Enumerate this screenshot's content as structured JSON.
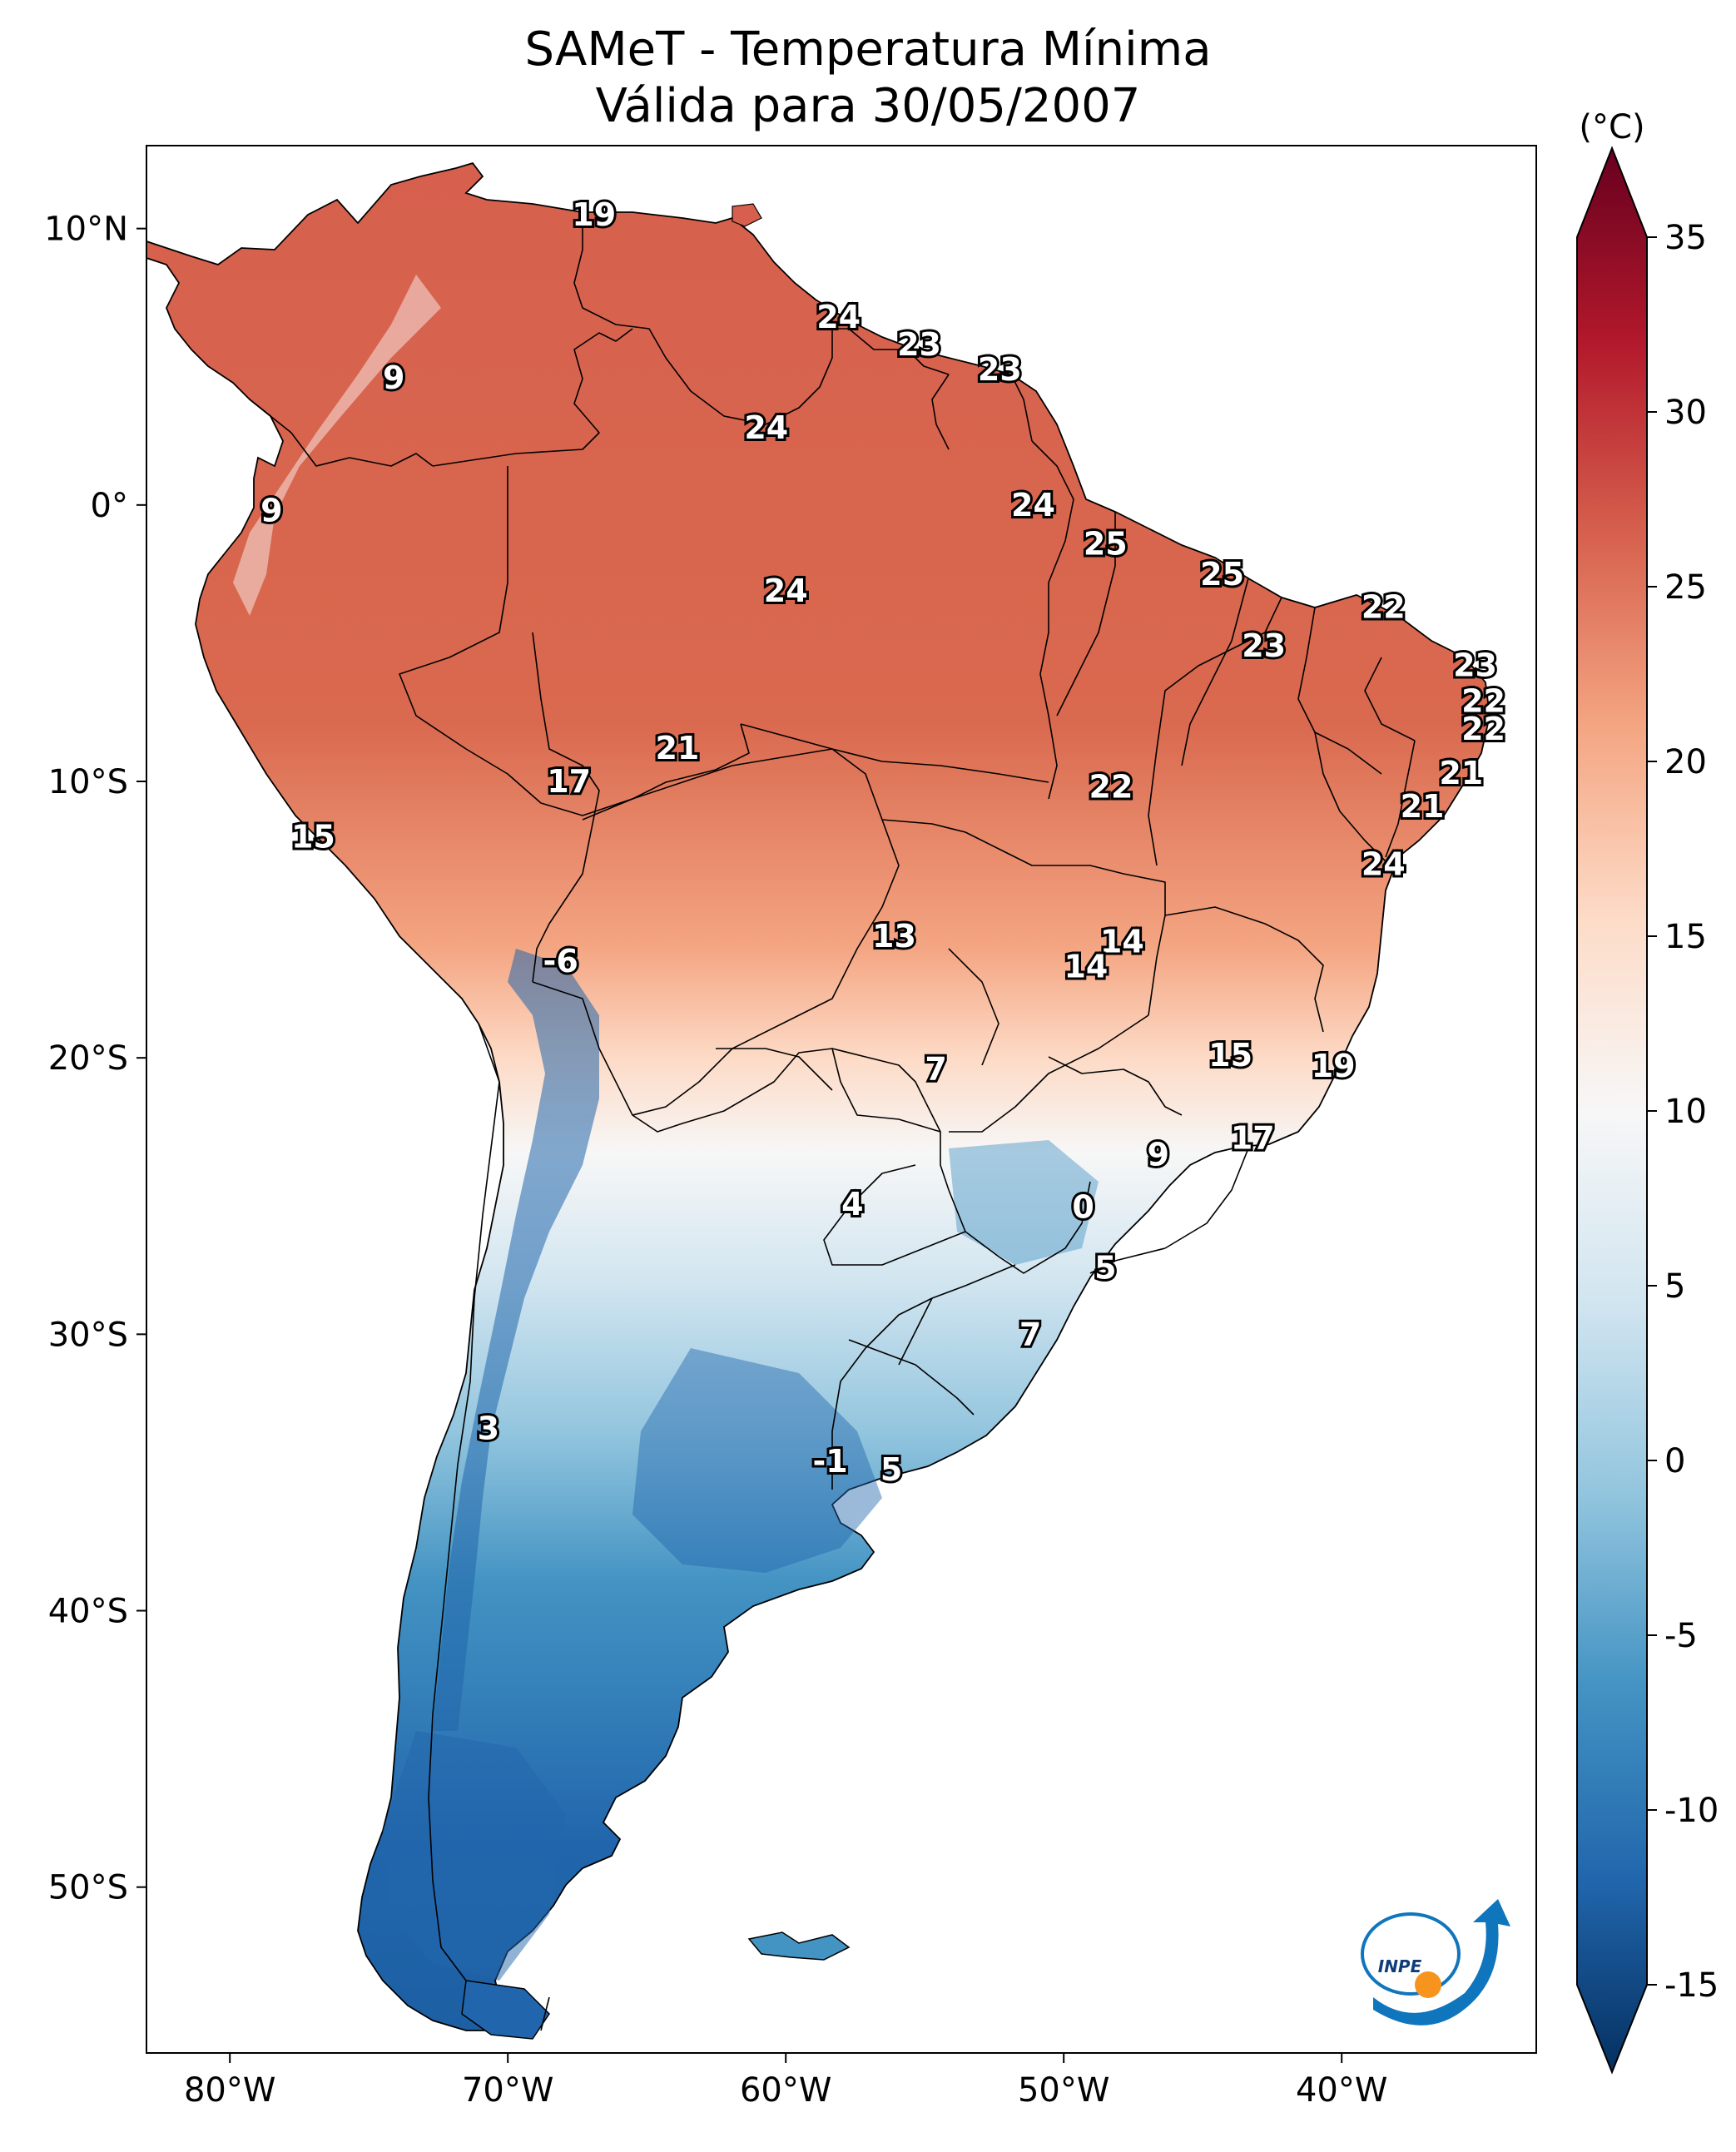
{
  "title": {
    "line1": "SAMeT - Temperatura Mínima",
    "line2": "Válida para 30/05/2007"
  },
  "map": {
    "lon_range": [
      -83,
      -33
    ],
    "lat_range": [
      -56,
      13
    ],
    "xticks": [
      {
        "lon": -80,
        "label": "80°W"
      },
      {
        "lon": -70,
        "label": "70°W"
      },
      {
        "lon": -60,
        "label": "60°W"
      },
      {
        "lon": -50,
        "label": "50°W"
      },
      {
        "lon": -40,
        "label": "40°W"
      }
    ],
    "yticks": [
      {
        "lat": 10,
        "label": "10°N"
      },
      {
        "lat": 0,
        "label": "0°"
      },
      {
        "lat": -10,
        "label": "10°S"
      },
      {
        "lat": -20,
        "label": "20°S"
      },
      {
        "lat": -30,
        "label": "30°S"
      },
      {
        "lat": -40,
        "label": "40°S"
      },
      {
        "lat": -50,
        "label": "50°S"
      }
    ]
  },
  "colorbar": {
    "unit": "(°C)",
    "range": [
      -15,
      35
    ],
    "ticks": [
      "35",
      "30",
      "25",
      "20",
      "15",
      "10",
      "5",
      "0",
      "-5",
      "-10",
      "-15"
    ],
    "colors": [
      "#053061",
      "#2166ac",
      "#4393c3",
      "#92c5de",
      "#d1e5f0",
      "#f7f7f7",
      "#fddbc7",
      "#f4a582",
      "#d6604d",
      "#b2182b",
      "#67001f"
    ]
  },
  "station_values": [
    {
      "lon": -66.9,
      "lat": 10.5,
      "label": "19"
    },
    {
      "lon": -74.1,
      "lat": 4.6,
      "label": "9"
    },
    {
      "lon": -78.5,
      "lat": -0.2,
      "label": "9"
    },
    {
      "lon": -58.1,
      "lat": 6.8,
      "label": "24"
    },
    {
      "lon": -55.2,
      "lat": 5.8,
      "label": "23"
    },
    {
      "lon": -52.3,
      "lat": 4.9,
      "label": "23"
    },
    {
      "lon": -60.7,
      "lat": 2.8,
      "label": "24"
    },
    {
      "lon": -51.1,
      "lat": 0.0,
      "label": "24"
    },
    {
      "lon": -48.5,
      "lat": -1.4,
      "label": "25"
    },
    {
      "lon": -44.3,
      "lat": -2.5,
      "label": "25"
    },
    {
      "lon": -60.0,
      "lat": -3.1,
      "label": "24"
    },
    {
      "lon": -38.5,
      "lat": -3.7,
      "label": "22"
    },
    {
      "lon": -42.8,
      "lat": -5.1,
      "label": "23"
    },
    {
      "lon": -35.2,
      "lat": -5.8,
      "label": "23"
    },
    {
      "lon": -34.9,
      "lat": -7.1,
      "label": "22"
    },
    {
      "lon": -34.9,
      "lat": -8.1,
      "label": "22"
    },
    {
      "lon": -63.9,
      "lat": -8.8,
      "label": "21"
    },
    {
      "lon": -67.8,
      "lat": -10.0,
      "label": "17"
    },
    {
      "lon": -48.3,
      "lat": -10.2,
      "label": "22"
    },
    {
      "lon": -35.7,
      "lat": -9.7,
      "label": "21"
    },
    {
      "lon": -37.1,
      "lat": -10.9,
      "label": "21"
    },
    {
      "lon": -38.5,
      "lat": -13.0,
      "label": "24"
    },
    {
      "lon": -77.0,
      "lat": -12.0,
      "label": "15"
    },
    {
      "lon": -56.1,
      "lat": -15.6,
      "label": "13"
    },
    {
      "lon": -47.9,
      "lat": -15.8,
      "label": "14"
    },
    {
      "lon": -49.2,
      "lat": -16.7,
      "label": "14"
    },
    {
      "lon": -68.1,
      "lat": -16.5,
      "label": "-6"
    },
    {
      "lon": -44.0,
      "lat": -19.9,
      "label": "15"
    },
    {
      "lon": -40.3,
      "lat": -20.3,
      "label": "19"
    },
    {
      "lon": -54.6,
      "lat": -20.4,
      "label": "7"
    },
    {
      "lon": -43.2,
      "lat": -22.9,
      "label": "17"
    },
    {
      "lon": -46.6,
      "lat": -23.5,
      "label": "9"
    },
    {
      "lon": -49.3,
      "lat": -25.4,
      "label": "0"
    },
    {
      "lon": -57.6,
      "lat": -25.3,
      "label": "4"
    },
    {
      "lon": -48.5,
      "lat": -27.6,
      "label": "5"
    },
    {
      "lon": -51.2,
      "lat": -30.0,
      "label": "7"
    },
    {
      "lon": -70.7,
      "lat": -33.4,
      "label": "3"
    },
    {
      "lon": -58.4,
      "lat": -34.6,
      "label": "-1"
    },
    {
      "lon": -56.2,
      "lat": -34.9,
      "label": "5"
    }
  ],
  "logo": {
    "text": "INPE"
  }
}
